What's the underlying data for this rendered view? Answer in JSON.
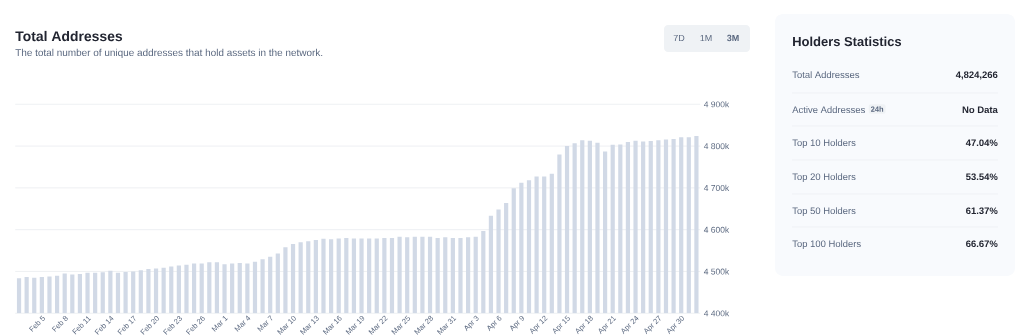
{
  "chart_data": [
    {
      "type": "bar",
      "title": "Total Addresses",
      "subtitle": "The total number of unique addresses that hold assets in the network.",
      "categories": [
        null,
        null,
        null,
        "Feb 5",
        null,
        null,
        "Feb 8",
        null,
        null,
        "Feb 11",
        null,
        null,
        "Feb 14",
        null,
        null,
        "Feb 17",
        null,
        null,
        "Feb 20",
        null,
        null,
        "Feb 23",
        null,
        null,
        "Feb 26",
        null,
        null,
        "Mar 1",
        null,
        null,
        "Mar 4",
        null,
        null,
        "Mar 7",
        null,
        null,
        "Mar 10",
        null,
        null,
        "Mar 13",
        null,
        null,
        "Mar 16",
        null,
        null,
        "Mar 19",
        null,
        null,
        "Mar 22",
        null,
        null,
        "Mar 25",
        null,
        null,
        "Mar 28",
        null,
        null,
        "Mar 31",
        null,
        null,
        "Apr 3",
        null,
        null,
        "Apr 6",
        null,
        null,
        "Apr 9",
        null,
        null,
        "Apr 12",
        null,
        null,
        "Apr 15",
        null,
        null,
        "Apr 18",
        null,
        null,
        "Apr 21",
        null,
        null,
        "Apr 24",
        null,
        null,
        "Apr 27",
        null,
        null,
        "Apr 30",
        null,
        null
      ],
      "values": [
        4484,
        4487,
        4485,
        4487,
        4488,
        4490,
        4495,
        4493,
        4494,
        4497,
        4497,
        4498,
        4502,
        4497,
        4499,
        4500,
        4503,
        4506,
        4507,
        4509,
        4512,
        4514,
        4516,
        4519,
        4519,
        4522,
        4522,
        4517,
        4519,
        4520,
        4519,
        4523,
        4529,
        4535,
        4543,
        4558,
        4566,
        4570,
        4572,
        4575,
        4578,
        4577,
        4579,
        4580,
        4579,
        4579,
        4579,
        4579,
        4580,
        4580,
        4583,
        4582,
        4583,
        4583,
        4583,
        4580,
        4582,
        4580,
        4580,
        4582,
        4583,
        4597,
        4633,
        4648,
        4664,
        4699,
        4712,
        4718,
        4727,
        4727,
        4734,
        4780,
        4800,
        4807,
        4814,
        4813,
        4808,
        4787,
        4803,
        4804,
        4810,
        4813,
        4811,
        4812,
        4814,
        4816,
        4817,
        4821,
        4821,
        4824
      ],
      "color": "#d1d9e6",
      "ylim": [
        4400,
        4900
      ],
      "yticks": [
        {
          "value": 4400,
          "label": "4 400k"
        },
        {
          "value": 4500,
          "label": "4 500k"
        },
        {
          "value": 4600,
          "label": "4 600k"
        },
        {
          "value": 4700,
          "label": "4 700k"
        },
        {
          "value": 4800,
          "label": "4 800k"
        },
        {
          "value": 4900,
          "label": "4 900k"
        }
      ],
      "grid": "y",
      "annotations": [
        "7D",
        "1M",
        "3M"
      ]
    },
    {
      "type": "other",
      "title": "Holders Statistics",
      "categories": [
        "Total Addresses",
        "Active Addresses",
        "Top 10 Holders",
        "Top 20 Holders",
        "Top 50 Holders",
        "Top 100 Holders"
      ],
      "value_labels": [
        "4,824,266",
        "No Data",
        "47.04%",
        "53.54%",
        "61.37%",
        "66.67%"
      ],
      "annotations": [
        "24h"
      ]
    }
  ]
}
